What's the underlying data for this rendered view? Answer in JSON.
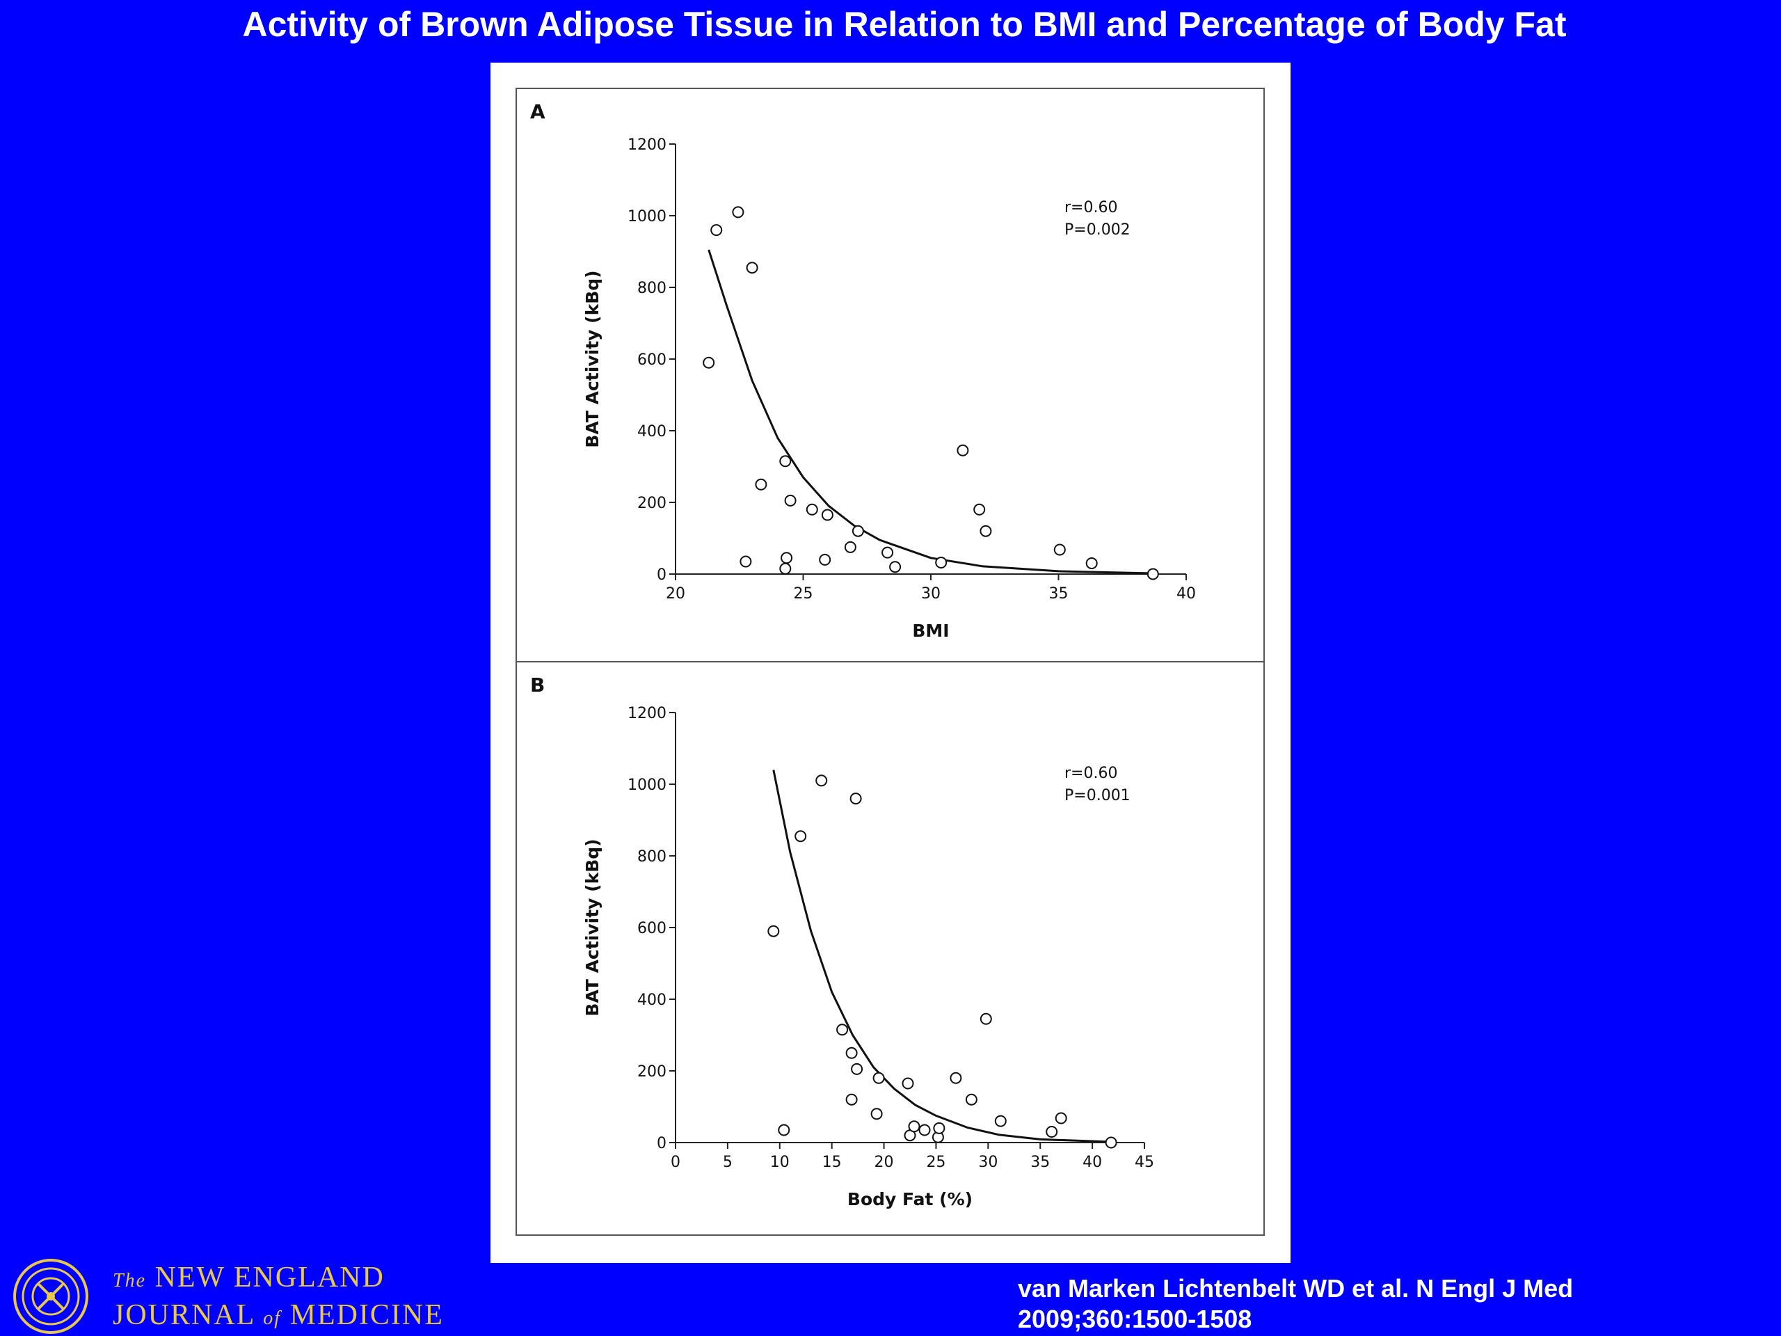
{
  "slide": {
    "title": "Activity of Brown Adipose Tissue in Relation to BMI and Percentage of Body Fat",
    "citation_line1": "van Marken Lichtenbelt WD et al. N Engl J Med",
    "citation_line2": "2009;360:1500-1508",
    "journal": {
      "line1_prefix": "The",
      "line1_main": "NEW ENGLAND",
      "line2_main_a": "JOURNAL",
      "line2_small": "of",
      "line2_main_b": "MEDICINE"
    },
    "logo_icon": "nejm-seal-icon",
    "colors": {
      "background": "#0000ff",
      "journal_gold": "#e8c84a"
    }
  },
  "chart_data": [
    {
      "panel": "A",
      "type": "scatter",
      "xlabel": "BMI",
      "ylabel": "BAT Activity (kBq)",
      "xlim": [
        20,
        40
      ],
      "ylim": [
        0,
        1200
      ],
      "xticks": [
        20,
        25,
        30,
        35,
        40
      ],
      "yticks": [
        0,
        200,
        400,
        600,
        800,
        1000,
        1200
      ],
      "stats": {
        "r": "r=0.60",
        "p": "P=0.002"
      },
      "points": [
        [
          21.3,
          590
        ],
        [
          21.6,
          960
        ],
        [
          22.45,
          1010
        ],
        [
          23.0,
          855
        ],
        [
          22.75,
          35
        ],
        [
          23.35,
          250
        ],
        [
          24.3,
          315
        ],
        [
          24.5,
          205
        ],
        [
          24.35,
          45
        ],
        [
          24.3,
          15
        ],
        [
          25.35,
          180
        ],
        [
          25.95,
          165
        ],
        [
          25.85,
          40
        ],
        [
          26.85,
          75
        ],
        [
          27.15,
          120
        ],
        [
          28.3,
          60
        ],
        [
          28.6,
          20
        ],
        [
          30.4,
          32
        ],
        [
          31.25,
          345
        ],
        [
          31.9,
          180
        ],
        [
          32.15,
          120
        ],
        [
          35.05,
          68
        ],
        [
          36.3,
          30
        ],
        [
          38.7,
          0
        ]
      ],
      "fit_curve": {
        "type": "exponential",
        "x_range": [
          21.3,
          38.7
        ],
        "points": [
          [
            21.3,
            905
          ],
          [
            22,
            750
          ],
          [
            23,
            540
          ],
          [
            24,
            380
          ],
          [
            25,
            270
          ],
          [
            26,
            190
          ],
          [
            27,
            135
          ],
          [
            28,
            95
          ],
          [
            30,
            45
          ],
          [
            32,
            22
          ],
          [
            35,
            8
          ],
          [
            38.7,
            2
          ]
        ]
      }
    },
    {
      "panel": "B",
      "type": "scatter",
      "xlabel": "Body Fat (%)",
      "ylabel": "BAT Activity (kBq)",
      "xlim": [
        0,
        45
      ],
      "ylim": [
        0,
        1200
      ],
      "xticks": [
        0,
        5,
        10,
        15,
        20,
        25,
        30,
        35,
        40,
        45
      ],
      "yticks": [
        0,
        200,
        400,
        600,
        800,
        1000,
        1200
      ],
      "stats": {
        "r": "r=0.60",
        "p": "P=0.001"
      },
      "points": [
        [
          9.4,
          590
        ],
        [
          10.4,
          35
        ],
        [
          12.0,
          855
        ],
        [
          14.0,
          1010
        ],
        [
          17.3,
          960
        ],
        [
          16.0,
          315
        ],
        [
          16.9,
          250
        ],
        [
          17.4,
          205
        ],
        [
          16.9,
          120
        ],
        [
          19.5,
          180
        ],
        [
          19.3,
          80
        ],
        [
          22.3,
          165
        ],
        [
          22.5,
          20
        ],
        [
          22.9,
          45
        ],
        [
          23.9,
          35
        ],
        [
          25.2,
          15
        ],
        [
          25.3,
          40
        ],
        [
          26.9,
          180
        ],
        [
          28.4,
          120
        ],
        [
          29.8,
          345
        ],
        [
          31.2,
          60
        ],
        [
          36.1,
          30
        ],
        [
          37.0,
          68
        ],
        [
          41.8,
          0
        ]
      ],
      "fit_curve": {
        "type": "exponential",
        "x_range": [
          9.4,
          41.8
        ],
        "points": [
          [
            9.4,
            1040
          ],
          [
            11,
            810
          ],
          [
            13,
            590
          ],
          [
            15,
            420
          ],
          [
            17,
            300
          ],
          [
            19,
            210
          ],
          [
            21,
            150
          ],
          [
            23,
            105
          ],
          [
            25,
            75
          ],
          [
            28,
            42
          ],
          [
            31,
            22
          ],
          [
            35,
            9
          ],
          [
            41.8,
            2
          ]
        ]
      }
    }
  ]
}
